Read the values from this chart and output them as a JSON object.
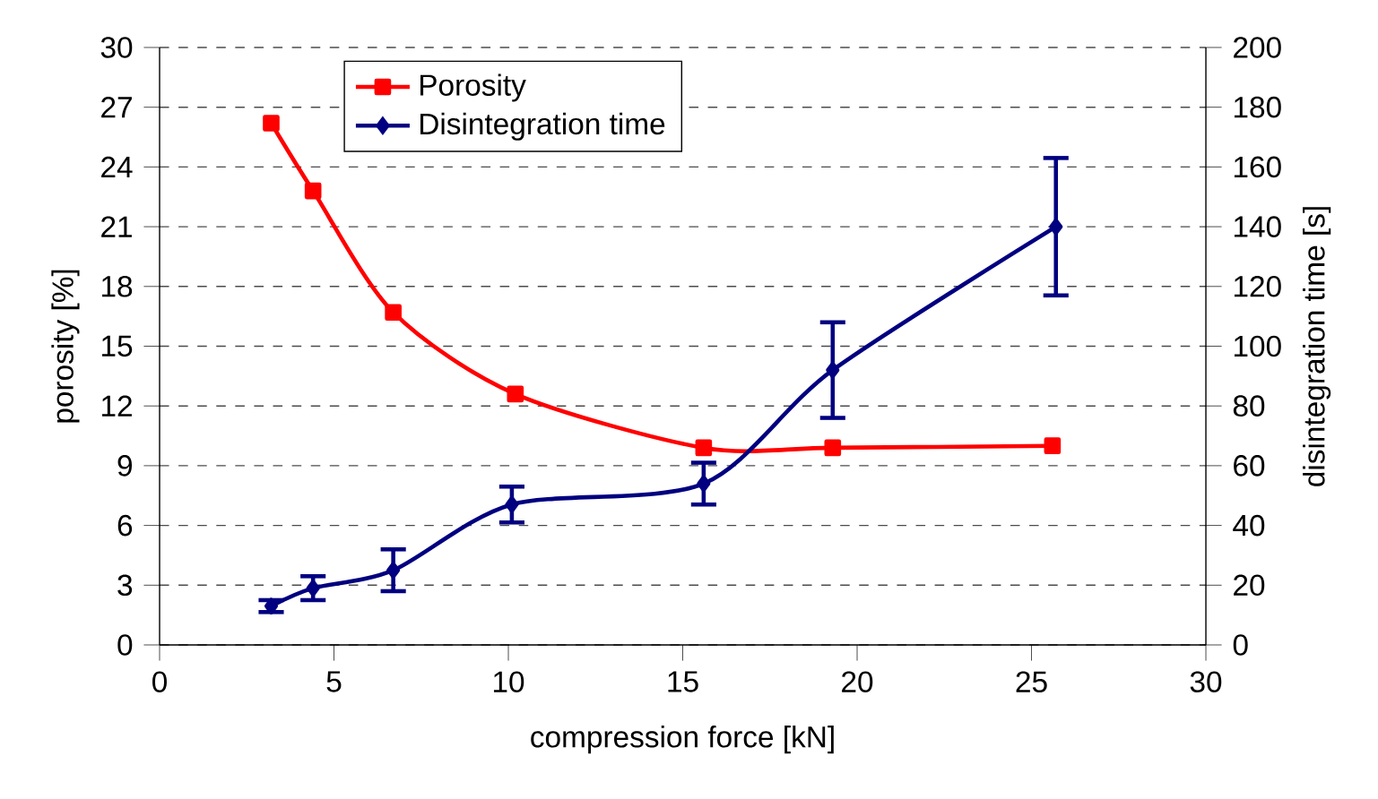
{
  "chart_data": {
    "type": "line",
    "xlabel": "compression force [kN]",
    "ylabel": "porosity [%]",
    "y2label": "disintegration time [s]",
    "xlim": [
      0,
      30
    ],
    "xticks": [
      0,
      5,
      10,
      15,
      20,
      25,
      30
    ],
    "ylim": [
      0,
      30
    ],
    "yticks": [
      0,
      3,
      6,
      9,
      12,
      15,
      18,
      21,
      24,
      27,
      30
    ],
    "y2lim": [
      0,
      200
    ],
    "y2ticks": [
      0,
      20,
      40,
      60,
      80,
      100,
      120,
      140,
      160,
      180,
      200
    ],
    "grid": "y",
    "legend": "top left",
    "series": [
      {
        "name": "Porosity",
        "color": "#ff0000",
        "marker": "square",
        "x": [
          3.2,
          4.4,
          6.7,
          10.2,
          15.6,
          19.3,
          25.6
        ],
        "values": [
          26.2,
          22.8,
          16.7,
          12.6,
          9.9,
          9.9,
          10.0
        ]
      },
      {
        "name": "Disintegration time",
        "color": "#000080",
        "marker": "diamond",
        "axis": "y2",
        "x": [
          3.2,
          4.4,
          6.7,
          10.1,
          15.6,
          19.3,
          25.7
        ],
        "values": [
          13,
          19,
          25,
          47,
          54,
          92,
          140
        ],
        "errors": [
          2,
          4,
          7,
          6,
          7,
          16,
          23
        ]
      }
    ]
  }
}
